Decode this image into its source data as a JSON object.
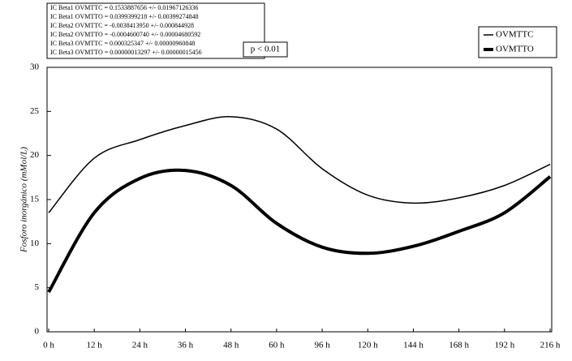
{
  "chart_data": {
    "type": "line",
    "y_label": "Fosforo inorgánico (mMol/L)",
    "notes": [
      "IC Beta1 OVMTTC = 0.1533887656 +/- 0.01967126336",
      "IC Beta1 OVMTTO = 0.0399399218 +/- 0.00399274848",
      "IC Beta2 OVMTTC = -0.0038413950 +/- 0.000844928",
      "IC Beta2 OVMTTO = -0.0004600740 +/- 0.00004680592",
      "IC Beta3 OVMTTC = 0.000325347 +/- 0.00000960848",
      "IC Beta3 OVMTTO = 0.00000013297 +/- 0.00000015456"
    ],
    "p_value": "p < 0.01",
    "categories": [
      "0 h",
      "12 h",
      "24 h",
      "36 h",
      "48 h",
      "60 h",
      "96 h",
      "120 h",
      "144 h",
      "168 h",
      "192 h",
      "216 h"
    ],
    "series": [
      {
        "name": "OVMTTC",
        "color": "#000000",
        "width": 1.5,
        "values": [
          13.5,
          19.7,
          21.8,
          23.4,
          24.4,
          23.0,
          18.5,
          15.5,
          14.6,
          15.2,
          16.6,
          19.0
        ]
      },
      {
        "name": "OVMTTO",
        "color": "#000000",
        "width": 4,
        "values": [
          4.5,
          13.5,
          17.4,
          18.3,
          16.6,
          12.3,
          9.6,
          8.9,
          9.7,
          11.4,
          13.5,
          17.6
        ]
      }
    ],
    "ylim": [
      0,
      30
    ],
    "yticks": [
      0,
      5,
      10,
      15,
      20,
      25,
      30
    ],
    "grid": false,
    "legend": "top-right"
  }
}
